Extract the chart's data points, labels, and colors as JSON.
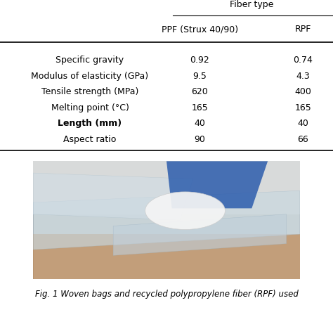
{
  "title_text": "Fiber type",
  "col_headers": [
    "PPF (Strux 40/90)",
    "RPF"
  ],
  "row_labels": [
    "Specific gravity",
    "Modulus of elasticity (GPa)",
    "Tensile strength (MPa)",
    "Melting point (°C)",
    "Length (mm)",
    "Aspect ratio"
  ],
  "col1_values": [
    "0.92",
    "9.5",
    "620",
    "165",
    "40",
    "90"
  ],
  "col2_values": [
    "0.74",
    "4.3",
    "400",
    "165",
    "40",
    "66"
  ],
  "fig_caption": "Fig. 1 Woven bags and recycled polypropylene fiber (RPF) used",
  "bg_color": "#ffffff",
  "text_color": "#000000",
  "font_size": 9,
  "bold_row": 4
}
